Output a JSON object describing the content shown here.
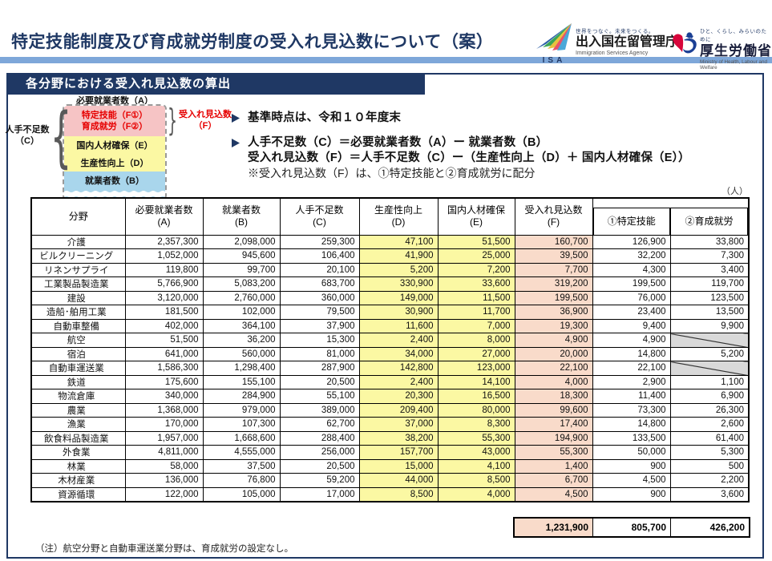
{
  "header": {
    "title": "特定技能制度及び育成就労制度の受入れ見込数について（案）",
    "isa": {
      "abbr": "ISA",
      "tagline": "世界をつなぐ。未来をつくる。",
      "name": "出入国在留管理庁",
      "name_en": "Immigration Services Agency"
    },
    "mhlw": {
      "tagline": "ひと、くらし、みらいのために",
      "name": "厚生労働省",
      "name_en": "Ministry of Health, Labour and Welfare"
    }
  },
  "section_title": "各分野における受入れ見込数の算出",
  "diagram": {
    "top_label": "必要就業者数（A）",
    "pink_line1": "特定技能（F①）",
    "pink_line2": "育成就労（F②）",
    "yellow1": "国内人材確保（E）",
    "yellow2": "生産性向上（D）",
    "blue": "就業者数（B）",
    "left_label1": "人手不足数",
    "left_label2": "（C）",
    "right_label1": "受入れ見込数",
    "right_label2": "（F）"
  },
  "bullets": {
    "b1": "基準時点は、令和１０年度末",
    "b2a": "人手不足数（C）＝必要就業者数（A）ー 就業者数（B）",
    "b2b": "受入れ見込数（F）＝人手不足数（C）ー（生産性向上（D）＋ 国内人材確保（E））",
    "b2c": "※受入れ見込数（F）は、①特定技能と②育成就労に配分"
  },
  "table": {
    "unit": "（人）",
    "headers": {
      "field": "分野",
      "a1": "必要就業者数",
      "a2": "(A)",
      "b1": "就業者数",
      "b2": "(B)",
      "c1": "人手不足数",
      "c2": "(C)",
      "d1": "生産性向上",
      "d2": "(D)",
      "e1": "国内人材確保",
      "e2": "(E)",
      "f1": "受入れ見込数",
      "f2": "(F)",
      "sub1": "①特定技能",
      "sub2": "②育成就労"
    },
    "rows": [
      [
        "介護",
        "2,357,300",
        "2,098,000",
        "259,300",
        "47,100",
        "51,500",
        "160,700",
        "126,900",
        "33,800"
      ],
      [
        "ビルクリーニング",
        "1,052,000",
        "945,600",
        "106,400",
        "41,900",
        "25,000",
        "39,500",
        "32,200",
        "7,300"
      ],
      [
        "リネンサプライ",
        "119,800",
        "99,700",
        "20,100",
        "5,200",
        "7,200",
        "7,700",
        "4,300",
        "3,400"
      ],
      [
        "工業製品製造業",
        "5,766,900",
        "5,083,200",
        "683,700",
        "330,900",
        "33,600",
        "319,200",
        "199,500",
        "119,700"
      ],
      [
        "建設",
        "3,120,000",
        "2,760,000",
        "360,000",
        "149,000",
        "11,500",
        "199,500",
        "76,000",
        "123,500"
      ],
      [
        "造船･舶用工業",
        "181,500",
        "102,000",
        "79,500",
        "30,900",
        "11,700",
        "36,900",
        "23,400",
        "13,500"
      ],
      [
        "自動車整備",
        "402,000",
        "364,100",
        "37,900",
        "11,600",
        "7,000",
        "19,300",
        "9,400",
        "9,900"
      ],
      [
        "航空",
        "51,500",
        "36,200",
        "15,300",
        "2,400",
        "8,000",
        "4,900",
        "4,900",
        null
      ],
      [
        "宿泊",
        "641,000",
        "560,000",
        "81,000",
        "34,000",
        "27,000",
        "20,000",
        "14,800",
        "5,200"
      ],
      [
        "自動車運送業",
        "1,586,300",
        "1,298,400",
        "287,900",
        "142,800",
        "123,000",
        "22,100",
        "22,100",
        null
      ],
      [
        "鉄道",
        "175,600",
        "155,100",
        "20,500",
        "2,400",
        "14,100",
        "4,000",
        "2,900",
        "1,100"
      ],
      [
        "物流倉庫",
        "340,000",
        "284,900",
        "55,100",
        "20,300",
        "16,500",
        "18,300",
        "11,400",
        "6,900"
      ],
      [
        "農業",
        "1,368,000",
        "979,000",
        "389,000",
        "209,400",
        "80,000",
        "99,600",
        "73,300",
        "26,300"
      ],
      [
        "漁業",
        "170,000",
        "107,300",
        "62,700",
        "37,000",
        "8,300",
        "17,400",
        "14,800",
        "2,600"
      ],
      [
        "飲食料品製造業",
        "1,957,000",
        "1,668,600",
        "288,400",
        "38,200",
        "55,300",
        "194,900",
        "133,500",
        "61,400"
      ],
      [
        "外食業",
        "4,811,000",
        "4,555,000",
        "256,000",
        "157,700",
        "43,000",
        "55,300",
        "50,000",
        "5,300"
      ],
      [
        "林業",
        "58,000",
        "37,500",
        "20,500",
        "15,000",
        "4,100",
        "1,400",
        "900",
        "500"
      ],
      [
        "木材産業",
        "136,000",
        "76,800",
        "59,200",
        "44,000",
        "8,500",
        "6,700",
        "4,500",
        "2,200"
      ],
      [
        "資源循環",
        "122,000",
        "105,000",
        "17,000",
        "8,500",
        "4,000",
        "4,500",
        "900",
        "3,600"
      ]
    ],
    "totals": [
      "1,231,900",
      "805,700",
      "426,200"
    ],
    "footnote": "（注）航空分野と自動車運送業分野は、育成就労の設定なし。"
  },
  "colors": {
    "navy": "#1f3864",
    "bar_blue": "#7ea7d9",
    "yellow": "#fbf8a3",
    "pink": "#f9dbca",
    "diagram_pink": "#f6c4c5",
    "diagram_blue": "#a9d6ec",
    "red": "#e60000",
    "na_grey": "#d9d9d9"
  }
}
